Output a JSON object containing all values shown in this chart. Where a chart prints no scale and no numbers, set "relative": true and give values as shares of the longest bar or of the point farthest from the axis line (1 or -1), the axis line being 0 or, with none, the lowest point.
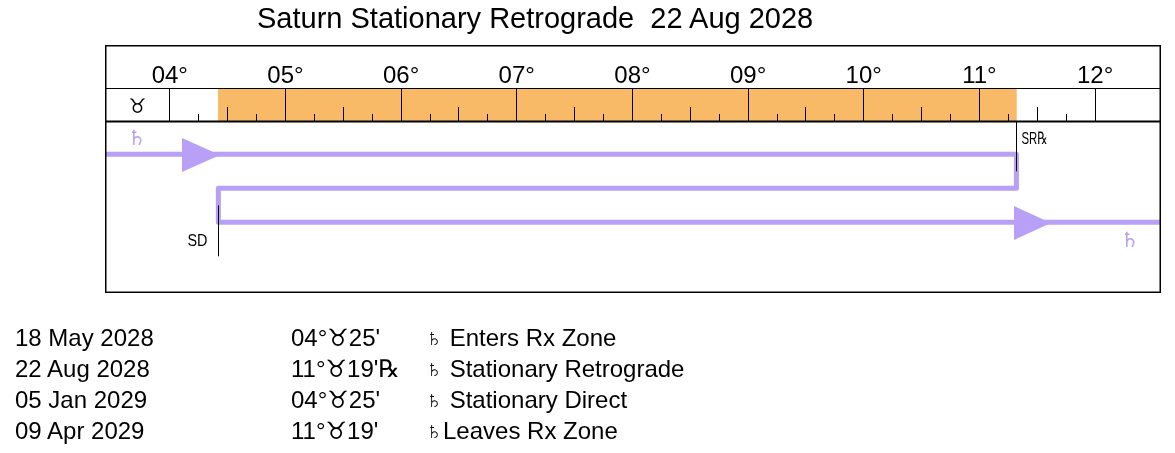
{
  "chart_data": [
    {
      "type": "bar",
      "title": "Saturn Stationary Retrograde  22 Aug 2028",
      "orientation": "horizontal",
      "categories": [
        null
      ],
      "values": [
        6.9
      ],
      "base": [
        4.42
      ],
      "color": "#f9ba68",
      "xlabel": "♉",
      "legend": false,
      "grid": "x",
      "xlim": [
        3.44,
        12.57
      ],
      "xticks": [
        {
          "value": 4,
          "label": "04°"
        },
        {
          "value": 4.25,
          "label": null
        },
        {
          "value": 4.5,
          "label": null
        },
        {
          "value": 4.75,
          "label": null
        },
        {
          "value": 5,
          "label": "05°"
        },
        {
          "value": 5.25,
          "label": null
        },
        {
          "value": 5.5,
          "label": null
        },
        {
          "value": 5.75,
          "label": null
        },
        {
          "value": 6,
          "label": "06°"
        },
        {
          "value": 6.25,
          "label": null
        },
        {
          "value": 6.5,
          "label": null
        },
        {
          "value": 6.75,
          "label": null
        },
        {
          "value": 7,
          "label": "07°"
        },
        {
          "value": 7.25,
          "label": null
        },
        {
          "value": 7.5,
          "label": null
        },
        {
          "value": 7.75,
          "label": null
        },
        {
          "value": 8,
          "label": "08°"
        },
        {
          "value": 8.25,
          "label": null
        },
        {
          "value": 8.5,
          "label": null
        },
        {
          "value": 8.75,
          "label": null
        },
        {
          "value": 9,
          "label": "09°"
        },
        {
          "value": 9.25,
          "label": null
        },
        {
          "value": 9.5,
          "label": null
        },
        {
          "value": 9.75,
          "label": null
        },
        {
          "value": 10,
          "label": "10°"
        },
        {
          "value": 10.25,
          "label": null
        },
        {
          "value": 10.5,
          "label": null
        },
        {
          "value": 10.75,
          "label": null
        },
        {
          "value": 11,
          "label": "11°"
        },
        {
          "value": 11.25,
          "label": null
        },
        {
          "value": 11.5,
          "label": null
        },
        {
          "value": 11.75,
          "label": null
        },
        {
          "value": 12,
          "label": "12°"
        }
      ]
    },
    {
      "type": "line",
      "relative": true,
      "legend": false,
      "marker": "none",
      "tick_labels": false,
      "xlim": [
        3.44,
        12.57
      ],
      "series": [
        {
          "name": "♄",
          "color": "#b9a0f7",
          "x": [
            3.44,
            11.32,
            11.32,
            4.42,
            4.42,
            12.57
          ],
          "values": [
            1,
            1,
            0.5,
            0.5,
            0,
            0
          ]
        }
      ],
      "ref_lines": [
        {
          "axis": "x",
          "value": 11.32,
          "label": "SR℞",
          "color": "#000000"
        },
        {
          "axis": "x",
          "value": 4.42,
          "label": "SD",
          "color": "#000000"
        }
      ],
      "annotations": [
        "18 May 2028",
        "04°♉25'",
        "♄ Enters Rx Zone",
        "22 Aug 2028",
        "11°♉19'℞",
        "♄ Stationary Retrograde",
        "05 Jan 2029",
        "04°♉25'",
        "♄ Stationary Direct",
        "09 Apr 2029",
        "11°♉19'",
        "♄Leaves Rx Zone"
      ]
    }
  ]
}
